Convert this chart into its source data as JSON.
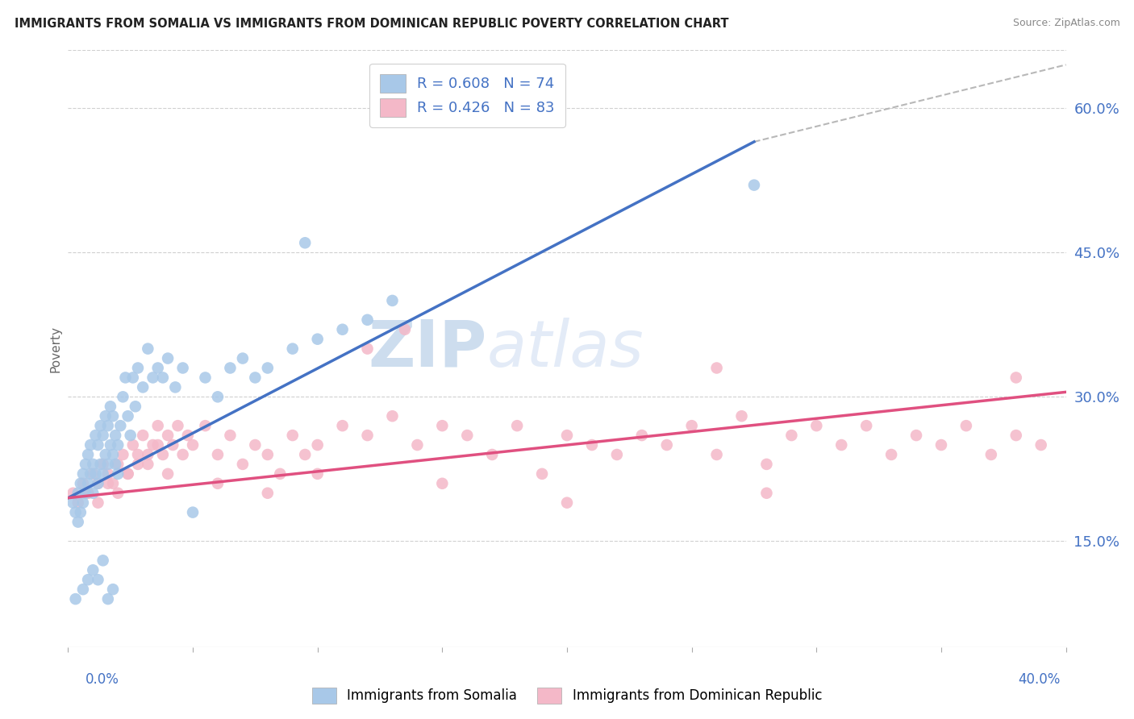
{
  "title": "IMMIGRANTS FROM SOMALIA VS IMMIGRANTS FROM DOMINICAN REPUBLIC POVERTY CORRELATION CHART",
  "source": "Source: ZipAtlas.com",
  "ylabel": "Poverty",
  "right_yticks": [
    "15.0%",
    "30.0%",
    "45.0%",
    "60.0%"
  ],
  "right_ytick_vals": [
    0.15,
    0.3,
    0.45,
    0.6
  ],
  "xlim": [
    0.0,
    0.4
  ],
  "ylim": [
    0.04,
    0.66
  ],
  "somalia_color": "#a8c8e8",
  "dr_color": "#f4b8c8",
  "somalia_line_color": "#4472c4",
  "dr_line_color": "#e05080",
  "dashed_line_color": "#b8b8b8",
  "somalia_R": 0.608,
  "somalia_N": 74,
  "dr_R": 0.426,
  "dr_N": 83,
  "legend_text_color": "#4472c4",
  "legend_border_color": "#d0d0d0",
  "watermark_color": "#c8ddf0",
  "somalia_line_x": [
    0.0,
    0.275
  ],
  "somalia_line_y": [
    0.195,
    0.565
  ],
  "dr_line_x": [
    0.0,
    0.4
  ],
  "dr_line_y": [
    0.195,
    0.305
  ],
  "dash_line_x": [
    0.275,
    0.4
  ],
  "dash_line_y": [
    0.565,
    0.645
  ],
  "somalia_pts_x": [
    0.002,
    0.003,
    0.004,
    0.004,
    0.005,
    0.005,
    0.006,
    0.006,
    0.007,
    0.007,
    0.008,
    0.008,
    0.009,
    0.009,
    0.01,
    0.01,
    0.011,
    0.011,
    0.012,
    0.012,
    0.013,
    0.013,
    0.014,
    0.014,
    0.015,
    0.015,
    0.016,
    0.016,
    0.017,
    0.017,
    0.018,
    0.018,
    0.019,
    0.019,
    0.02,
    0.02,
    0.021,
    0.022,
    0.023,
    0.024,
    0.025,
    0.026,
    0.027,
    0.028,
    0.03,
    0.032,
    0.034,
    0.036,
    0.038,
    0.04,
    0.043,
    0.046,
    0.05,
    0.055,
    0.06,
    0.065,
    0.07,
    0.075,
    0.08,
    0.09,
    0.1,
    0.11,
    0.12,
    0.13,
    0.003,
    0.006,
    0.008,
    0.01,
    0.012,
    0.014,
    0.016,
    0.018,
    0.275,
    0.095
  ],
  "somalia_pts_y": [
    0.19,
    0.18,
    0.17,
    0.2,
    0.18,
    0.21,
    0.19,
    0.22,
    0.2,
    0.23,
    0.21,
    0.24,
    0.22,
    0.25,
    0.2,
    0.23,
    0.22,
    0.26,
    0.21,
    0.25,
    0.23,
    0.27,
    0.22,
    0.26,
    0.24,
    0.28,
    0.23,
    0.27,
    0.25,
    0.29,
    0.24,
    0.28,
    0.26,
    0.23,
    0.25,
    0.22,
    0.27,
    0.3,
    0.32,
    0.28,
    0.26,
    0.32,
    0.29,
    0.33,
    0.31,
    0.35,
    0.32,
    0.33,
    0.32,
    0.34,
    0.31,
    0.33,
    0.18,
    0.32,
    0.3,
    0.33,
    0.34,
    0.32,
    0.33,
    0.35,
    0.36,
    0.37,
    0.38,
    0.4,
    0.09,
    0.1,
    0.11,
    0.12,
    0.11,
    0.13,
    0.09,
    0.1,
    0.52,
    0.46
  ],
  "dr_pts_x": [
    0.002,
    0.004,
    0.006,
    0.008,
    0.01,
    0.012,
    0.014,
    0.016,
    0.018,
    0.02,
    0.022,
    0.024,
    0.026,
    0.028,
    0.03,
    0.032,
    0.034,
    0.036,
    0.038,
    0.04,
    0.042,
    0.044,
    0.046,
    0.048,
    0.05,
    0.055,
    0.06,
    0.065,
    0.07,
    0.075,
    0.08,
    0.085,
    0.09,
    0.095,
    0.1,
    0.11,
    0.12,
    0.13,
    0.14,
    0.15,
    0.16,
    0.17,
    0.18,
    0.19,
    0.2,
    0.21,
    0.22,
    0.23,
    0.24,
    0.25,
    0.26,
    0.27,
    0.28,
    0.29,
    0.3,
    0.31,
    0.32,
    0.33,
    0.34,
    0.35,
    0.36,
    0.37,
    0.38,
    0.39,
    0.008,
    0.012,
    0.016,
    0.02,
    0.024,
    0.028,
    0.032,
    0.036,
    0.04,
    0.06,
    0.08,
    0.1,
    0.135,
    0.15,
    0.2,
    0.28,
    0.12,
    0.26,
    0.38
  ],
  "dr_pts_y": [
    0.2,
    0.19,
    0.21,
    0.2,
    0.22,
    0.21,
    0.23,
    0.22,
    0.21,
    0.23,
    0.24,
    0.22,
    0.25,
    0.23,
    0.26,
    0.24,
    0.25,
    0.27,
    0.24,
    0.26,
    0.25,
    0.27,
    0.24,
    0.26,
    0.25,
    0.27,
    0.24,
    0.26,
    0.23,
    0.25,
    0.24,
    0.22,
    0.26,
    0.24,
    0.25,
    0.27,
    0.26,
    0.28,
    0.25,
    0.27,
    0.26,
    0.24,
    0.27,
    0.22,
    0.26,
    0.25,
    0.24,
    0.26,
    0.25,
    0.27,
    0.24,
    0.28,
    0.23,
    0.26,
    0.27,
    0.25,
    0.27,
    0.24,
    0.26,
    0.25,
    0.27,
    0.24,
    0.26,
    0.25,
    0.2,
    0.19,
    0.21,
    0.2,
    0.22,
    0.24,
    0.23,
    0.25,
    0.22,
    0.21,
    0.2,
    0.22,
    0.37,
    0.21,
    0.19,
    0.2,
    0.35,
    0.33,
    0.32
  ]
}
